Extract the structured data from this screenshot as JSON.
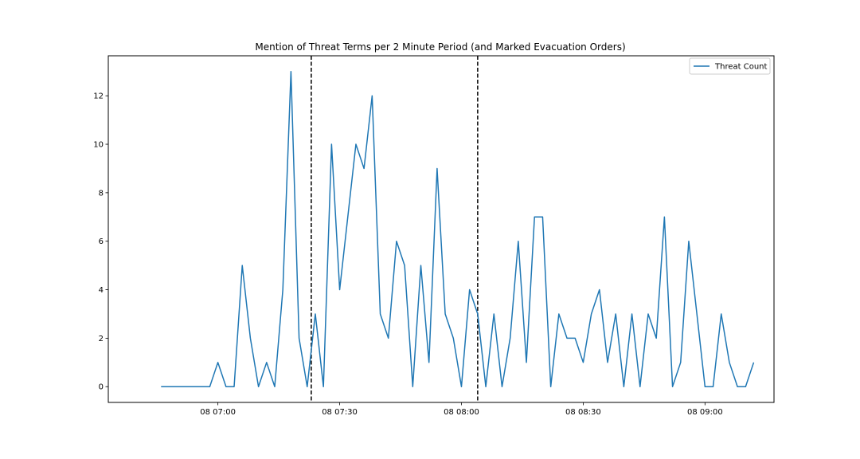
{
  "chart_data": {
    "type": "line",
    "title": "Mention of Threat Terms per 2 Minute Period (and Marked Evacuation Orders)",
    "xlabel": "",
    "ylabel": "",
    "x_time_start": "08 06:46",
    "x_step_minutes": 2,
    "xlim": [
      "08 06:33",
      "08 09:17"
    ],
    "ylim": [
      -0.65,
      13.65
    ],
    "x_ticks": [
      "08 07:00",
      "08 07:30",
      "08 08:00",
      "08 08:30",
      "08 09:00"
    ],
    "y_ticks": [
      0,
      2,
      4,
      6,
      8,
      10,
      12
    ],
    "series": [
      {
        "name": "Threat Count",
        "color": "#1f77b4",
        "values": [
          0,
          0,
          0,
          0,
          0,
          0,
          0,
          1,
          0,
          0,
          5,
          2,
          0,
          1,
          0,
          4,
          13,
          2,
          0,
          3,
          0,
          10,
          4,
          7,
          10,
          9,
          12,
          3,
          2,
          6,
          5,
          0,
          5,
          1,
          9,
          3,
          2,
          0,
          4,
          3,
          0,
          3,
          0,
          2,
          6,
          1,
          7,
          7,
          0,
          3,
          2,
          2,
          1,
          3,
          4,
          1,
          3,
          0,
          3,
          0,
          3,
          2,
          7,
          0,
          1,
          6,
          3,
          0,
          0,
          3,
          1,
          0,
          0,
          1
        ]
      }
    ],
    "vlines": [
      {
        "x": "08 07:23",
        "color": "#000000",
        "style": "dashed"
      },
      {
        "x": "08 08:04",
        "color": "#000000",
        "style": "dashed"
      }
    ],
    "legend_position": "top-right",
    "grid": false
  }
}
